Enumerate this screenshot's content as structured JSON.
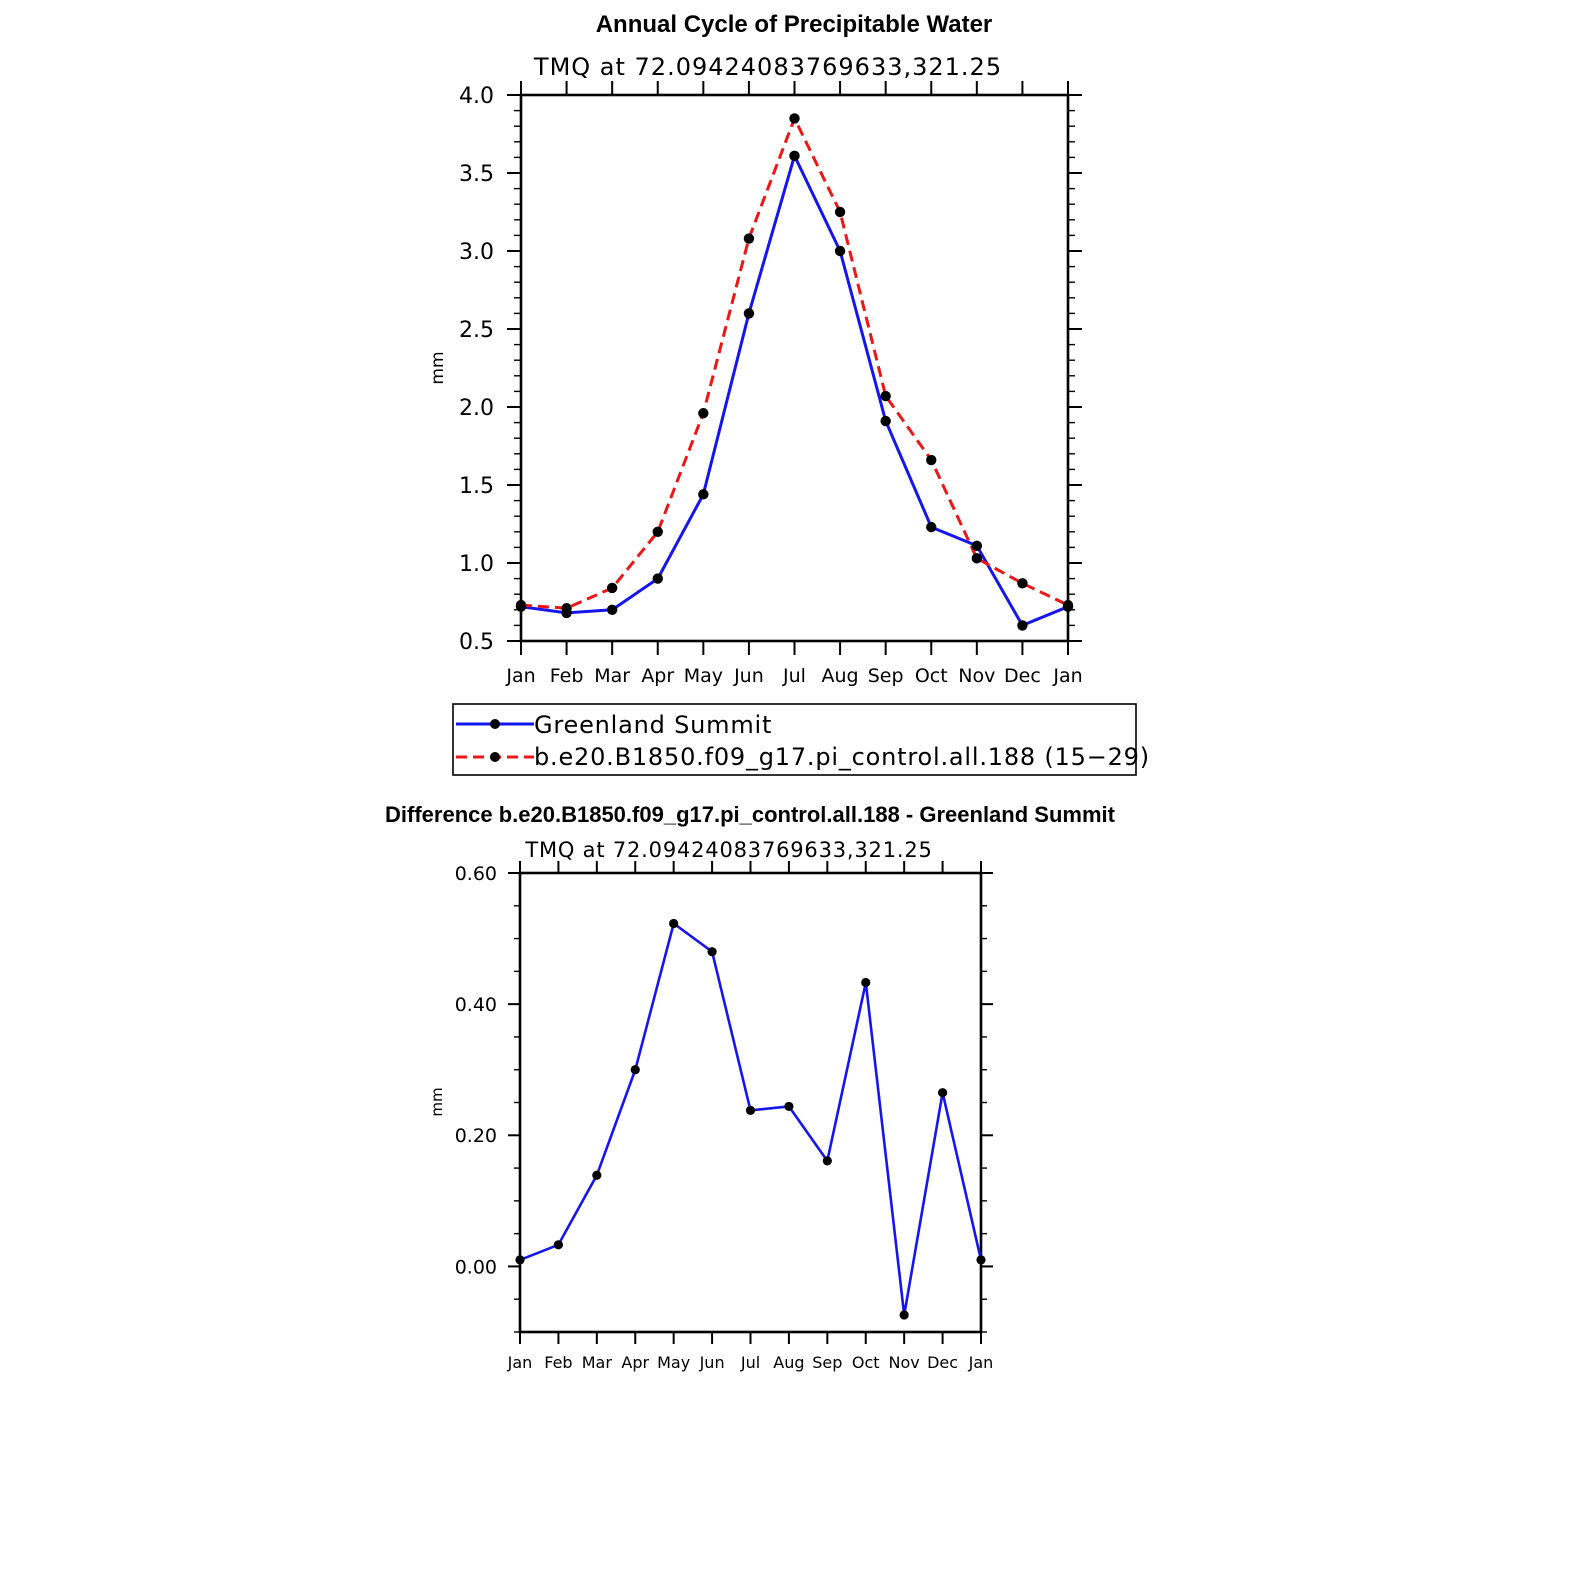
{
  "chart_data": [
    {
      "type": "line",
      "title": "Annual Cycle of Precipitable Water",
      "subtitle": "TMQ at 72.09424083769633,321.25",
      "ylabel": "mm",
      "categories": [
        "Jan",
        "Feb",
        "Mar",
        "Apr",
        "May",
        "Jun",
        "Jul",
        "Aug",
        "Sep",
        "Oct",
        "Nov",
        "Dec",
        "Jan"
      ],
      "ylim": [
        0.5,
        4.0
      ],
      "yticks": [
        "0.5",
        "1.0",
        "1.5",
        "2.0",
        "2.5",
        "3.0",
        "3.5",
        "4.0"
      ],
      "grid": false,
      "legend_position": "bottom",
      "series": [
        {
          "name": "Greenland Summit",
          "color": "#1515ee",
          "dash": "solid",
          "values": [
            0.72,
            0.68,
            0.7,
            0.9,
            1.44,
            2.6,
            3.61,
            3.0,
            1.91,
            1.23,
            1.11,
            0.6,
            0.72
          ]
        },
        {
          "name": "b.e20.B1850.f09_g17.pi_control.all.188 (15−29)",
          "color": "#ee1515",
          "dash": "dashed",
          "values": [
            0.73,
            0.71,
            0.84,
            1.2,
            1.96,
            3.08,
            3.85,
            3.25,
            2.07,
            1.66,
            1.03,
            0.87,
            0.73
          ]
        }
      ]
    },
    {
      "type": "line",
      "title": "Difference b.e20.B1850.f09_g17.pi_control.all.188 - Greenland Summit",
      "subtitle": "TMQ at 72.09424083769633,321.25",
      "ylabel": "mm",
      "categories": [
        "Jan",
        "Feb",
        "Mar",
        "Apr",
        "May",
        "Jun",
        "Jul",
        "Aug",
        "Sep",
        "Oct",
        "Nov",
        "Dec",
        "Jan"
      ],
      "ylim": [
        -0.1,
        0.6
      ],
      "yticks": [
        "0.00",
        "0.20",
        "0.40",
        "0.60"
      ],
      "grid": false,
      "series": [
        {
          "color": "#1515ee",
          "dash": "solid",
          "values": [
            0.01,
            0.033,
            0.139,
            0.3,
            0.523,
            0.48,
            0.238,
            0.244,
            0.161,
            0.433,
            -0.074,
            0.265,
            0.01
          ]
        }
      ]
    }
  ]
}
